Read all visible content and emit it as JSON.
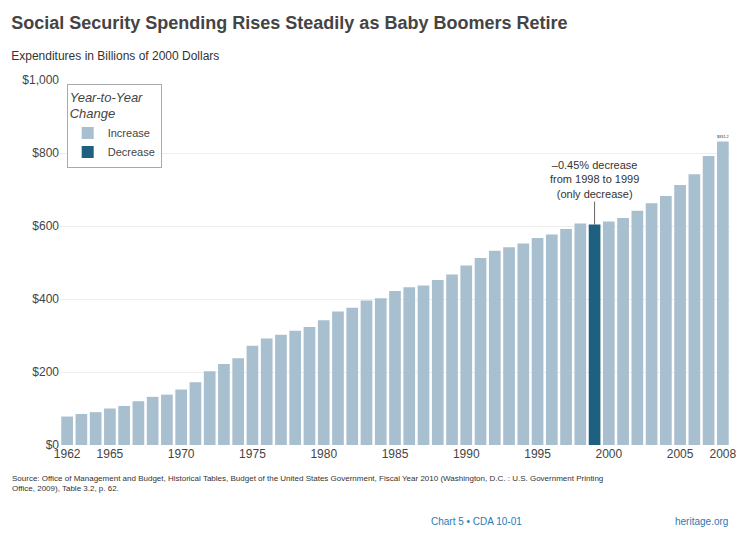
{
  "chart_data": {
    "type": "bar",
    "title": "Social Security Spending Rises Steadily as Baby Boomers Retire",
    "subtitle": "Expenditures in Billions of 2000 Dollars",
    "categories": [
      "1962",
      null,
      null,
      "1965",
      null,
      null,
      null,
      null,
      "1970",
      null,
      null,
      null,
      null,
      "1975",
      null,
      null,
      null,
      null,
      "1980",
      null,
      null,
      null,
      null,
      "1985",
      null,
      null,
      null,
      null,
      "1990",
      null,
      null,
      null,
      null,
      "1995",
      null,
      null,
      null,
      null,
      "2000",
      null,
      null,
      null,
      null,
      "2005",
      null,
      null,
      "2008"
    ],
    "series": [
      {
        "name": "Increase",
        "color": "#a8bfcf",
        "values": [
          78,
          85,
          90,
          100,
          107,
          120,
          132,
          138,
          152,
          172,
          202,
          222,
          238,
          272,
          292,
          302,
          313,
          323,
          342,
          366,
          376,
          396,
          402,
          422,
          432,
          437,
          452,
          467,
          492,
          512,
          532,
          542,
          552,
          567,
          577,
          592,
          607,
          null,
          612,
          622,
          642,
          662,
          682,
          712,
          742,
          792,
          831.2
        ],
        "value_labels": [
          null,
          null,
          null,
          null,
          null,
          null,
          null,
          null,
          null,
          null,
          null,
          null,
          null,
          null,
          null,
          null,
          null,
          null,
          null,
          null,
          null,
          null,
          null,
          null,
          null,
          null,
          null,
          null,
          null,
          null,
          null,
          null,
          null,
          null,
          null,
          null,
          null,
          null,
          null,
          null,
          null,
          null,
          null,
          null,
          null,
          null,
          "$831.2"
        ]
      },
      {
        "name": "Decrease",
        "color": "#1e6080",
        "values": [
          null,
          null,
          null,
          null,
          null,
          null,
          null,
          null,
          null,
          null,
          null,
          null,
          null,
          null,
          null,
          null,
          null,
          null,
          null,
          null,
          null,
          null,
          null,
          null,
          null,
          null,
          null,
          null,
          null,
          null,
          null,
          null,
          null,
          null,
          null,
          null,
          null,
          604,
          null,
          null,
          null,
          null,
          null,
          null,
          null,
          null,
          null
        ]
      }
    ],
    "legend_title": "Year-to-Year\nChange",
    "legend": "upper left",
    "ylim": [
      0,
      1000
    ],
    "yticks": [
      {
        "value": 0,
        "label": "$0"
      },
      {
        "value": 200,
        "label": "$200"
      },
      {
        "value": 400,
        "label": "$400"
      },
      {
        "value": 600,
        "label": "$600"
      },
      {
        "value": 800,
        "label": "$800"
      },
      {
        "value": 1000,
        "label": "$1,000"
      }
    ],
    "grid": true,
    "annotation": "–0.45% decrease\nfrom 1998 to 1999\n(only decrease)",
    "source_text": "Source: Office of Management and Budget, Historical Tables, Budget of the United States Government, Fiscal Year 2010 (Washington, D.C. : U.S. Government Printing\nOffice, 2009), Table 3.2, p. 62.",
    "chart_id_left": "Chart 5 • CDA 10-01",
    "chart_id_right": "heritage.org"
  }
}
